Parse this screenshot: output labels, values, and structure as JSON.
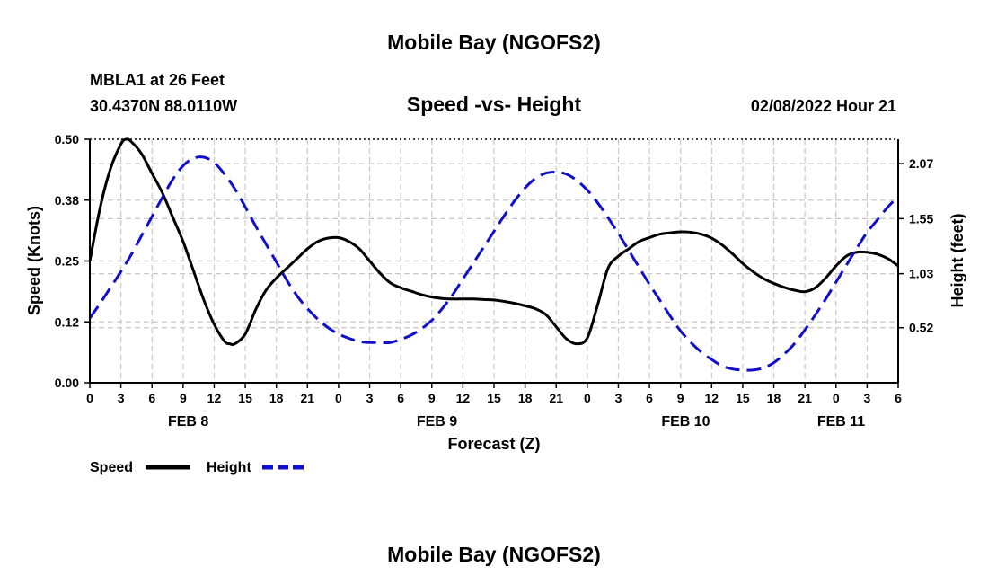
{
  "page": {
    "title_top": "Mobile Bay (NGOFS2)",
    "title_bottom": "Mobile Bay (NGOFS2)"
  },
  "header": {
    "station": "MBLA1 at 26 Feet",
    "coords": "30.4370N  88.0110W",
    "datetime": "02/08/2022 Hour 21"
  },
  "legend": {
    "speed_label": "Speed",
    "height_label": "Height"
  },
  "colors": {
    "speed": "#000000",
    "height": "#1010cc",
    "grid": "#c8c8c8"
  },
  "chart_data": {
    "type": "line",
    "title": "Speed -vs- Height",
    "xlabel": "Forecast (Z)",
    "ylabel_left": "Speed (Knots)",
    "ylabel_right": "Height (feet)",
    "x_range_hours": [
      0,
      78
    ],
    "y_left_range": [
      0,
      0.5
    ],
    "y_right_range": [
      0,
      2.3
    ],
    "y_left_ticks": [
      "0.00",
      "0.12",
      "0.25",
      "0.38",
      "0.50"
    ],
    "y_left_tick_values": [
      0,
      0.125,
      0.25,
      0.375,
      0.5
    ],
    "y_right_ticks": [
      "0.52",
      "1.03",
      "1.55",
      "2.07"
    ],
    "y_right_tick_values": [
      0.52,
      1.03,
      1.55,
      2.07
    ],
    "x_tick_labels": [
      "0",
      "3",
      "6",
      "9",
      "12",
      "15",
      "18",
      "21",
      "0",
      "3",
      "6",
      "9",
      "12",
      "15",
      "18",
      "21",
      "0",
      "3",
      "6",
      "9",
      "12",
      "15",
      "18",
      "21",
      "0",
      "3",
      "6"
    ],
    "x_tick_hours": [
      0,
      3,
      6,
      9,
      12,
      15,
      18,
      21,
      24,
      27,
      30,
      33,
      36,
      39,
      42,
      45,
      48,
      51,
      54,
      57,
      60,
      63,
      66,
      69,
      72,
      75,
      78
    ],
    "date_labels": [
      {
        "label": "FEB 8",
        "hour": 9.5
      },
      {
        "label": "FEB 9",
        "hour": 33.5
      },
      {
        "label": "FEB 10",
        "hour": 57.5
      },
      {
        "label": "FEB 11",
        "hour": 72.5
      }
    ],
    "grid": true,
    "series": [
      {
        "name": "Speed",
        "axis": "left",
        "style": "solid",
        "x": [
          0,
          1,
          2,
          3,
          3.5,
          4,
          5,
          6,
          7,
          8,
          9,
          10,
          11,
          12,
          13,
          13.5,
          14,
          15,
          16,
          17,
          18,
          19,
          20,
          21,
          22,
          23,
          24,
          25,
          26,
          27,
          28,
          29,
          30,
          31,
          32,
          33,
          34,
          35,
          36,
          37,
          38,
          39,
          40,
          41,
          42,
          43,
          44,
          45,
          46,
          47,
          48,
          49,
          50,
          51,
          52,
          53,
          54,
          55,
          56,
          57,
          58,
          59,
          60,
          61,
          62,
          63,
          64,
          65,
          66,
          67,
          68,
          69,
          70,
          71,
          72,
          73,
          74,
          75,
          76,
          77,
          78
        ],
        "values": [
          0.25,
          0.36,
          0.44,
          0.49,
          0.5,
          0.495,
          0.47,
          0.43,
          0.39,
          0.34,
          0.29,
          0.23,
          0.17,
          0.12,
          0.085,
          0.08,
          0.08,
          0.1,
          0.15,
          0.19,
          0.215,
          0.235,
          0.255,
          0.275,
          0.29,
          0.297,
          0.298,
          0.29,
          0.275,
          0.25,
          0.225,
          0.205,
          0.195,
          0.188,
          0.181,
          0.176,
          0.173,
          0.172,
          0.172,
          0.172,
          0.171,
          0.17,
          0.167,
          0.163,
          0.158,
          0.152,
          0.14,
          0.115,
          0.09,
          0.08,
          0.092,
          0.16,
          0.235,
          0.26,
          0.275,
          0.29,
          0.298,
          0.305,
          0.308,
          0.31,
          0.309,
          0.305,
          0.297,
          0.283,
          0.265,
          0.245,
          0.228,
          0.214,
          0.204,
          0.196,
          0.19,
          0.187,
          0.195,
          0.215,
          0.24,
          0.26,
          0.268,
          0.268,
          0.264,
          0.255,
          0.24
        ]
      },
      {
        "name": "Height",
        "axis": "right",
        "style": "dashed",
        "x": [
          0,
          1,
          2,
          3,
          4,
          5,
          6,
          7,
          8,
          9,
          10,
          11,
          12,
          13,
          14,
          15,
          16,
          17,
          18,
          19,
          20,
          21,
          22,
          23,
          24,
          25,
          26,
          27,
          28,
          29,
          30,
          31,
          32,
          33,
          34,
          35,
          36,
          37,
          38,
          39,
          40,
          41,
          42,
          43,
          44,
          45,
          46,
          47,
          48,
          49,
          50,
          51,
          52,
          53,
          54,
          55,
          56,
          57,
          58,
          59,
          60,
          61,
          62,
          63,
          64,
          65,
          66,
          67,
          68,
          69,
          70,
          71,
          72,
          73,
          74,
          75,
          76,
          77,
          78
        ],
        "values": [
          0.61,
          0.75,
          0.9,
          1.05,
          1.21,
          1.39,
          1.57,
          1.75,
          1.92,
          2.05,
          2.12,
          2.13,
          2.08,
          1.97,
          1.83,
          1.66,
          1.48,
          1.31,
          1.14,
          0.97,
          0.82,
          0.7,
          0.6,
          0.52,
          0.46,
          0.42,
          0.39,
          0.38,
          0.38,
          0.38,
          0.41,
          0.45,
          0.51,
          0.59,
          0.7,
          0.83,
          0.98,
          1.13,
          1.28,
          1.43,
          1.58,
          1.72,
          1.84,
          1.93,
          1.98,
          1.99,
          1.97,
          1.91,
          1.82,
          1.7,
          1.56,
          1.41,
          1.25,
          1.09,
          0.93,
          0.78,
          0.63,
          0.49,
          0.38,
          0.29,
          0.22,
          0.16,
          0.13,
          0.12,
          0.12,
          0.14,
          0.19,
          0.27,
          0.37,
          0.5,
          0.64,
          0.79,
          0.95,
          1.11,
          1.27,
          1.42,
          1.54,
          1.66,
          1.76
        ]
      }
    ]
  }
}
